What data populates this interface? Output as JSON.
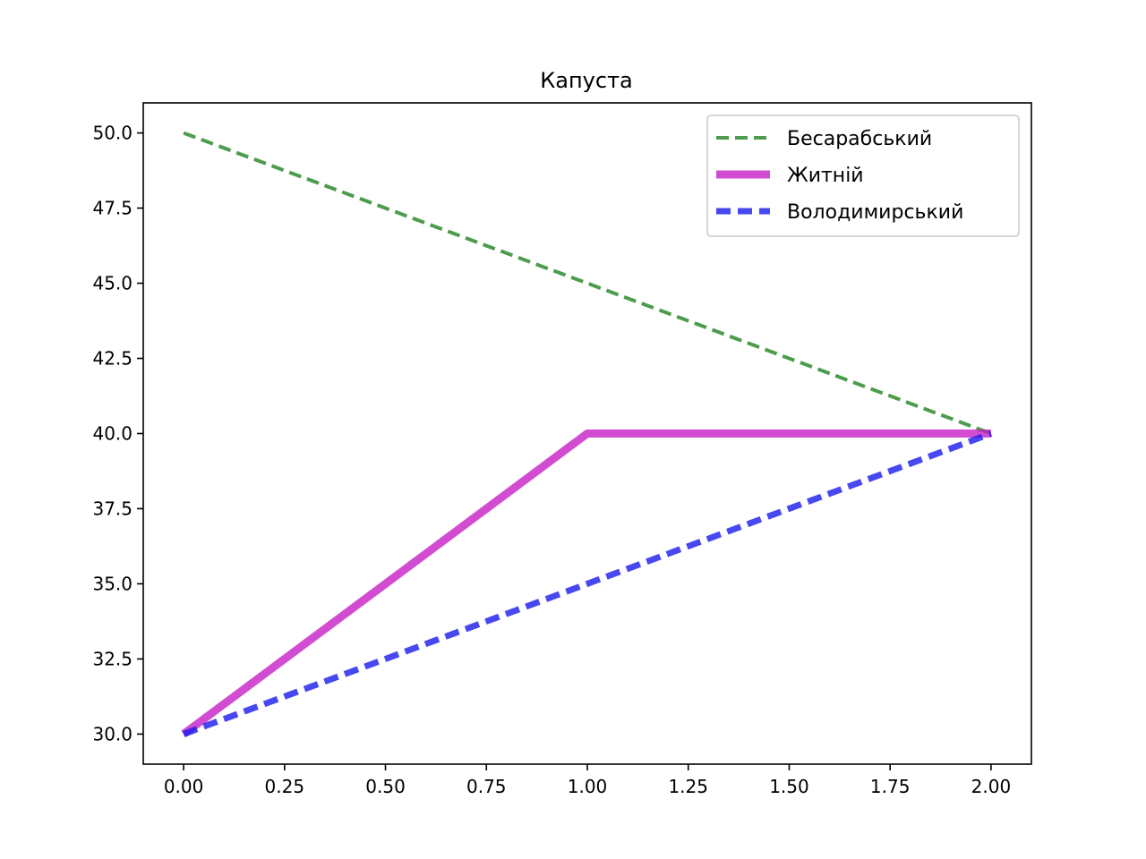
{
  "chart_data": {
    "type": "line",
    "title": "Капуста",
    "xlabel": "",
    "ylabel": "",
    "xlim": [
      -0.1,
      2.1
    ],
    "ylim": [
      29.0,
      51.0
    ],
    "x_ticks": [
      "0.00",
      "0.25",
      "0.50",
      "0.75",
      "1.00",
      "1.25",
      "1.50",
      "1.75",
      "2.00"
    ],
    "y_ticks": [
      "30.0",
      "32.5",
      "35.0",
      "37.5",
      "40.0",
      "42.5",
      "45.0",
      "47.5",
      "50.0"
    ],
    "grid": false,
    "legend_position": "upper right",
    "series": [
      {
        "name": "Бесарабський",
        "x": [
          0,
          1,
          2
        ],
        "y": [
          50,
          45,
          40
        ],
        "color": "#2e8b2e",
        "style": "dashed"
      },
      {
        "name": "Житній",
        "x": [
          0,
          1,
          2
        ],
        "y": [
          30,
          40,
          40
        ],
        "color": "#c71fc7",
        "style": "solid"
      },
      {
        "name": "Володимирський",
        "x": [
          0,
          1,
          2
        ],
        "y": [
          30,
          35,
          40
        ],
        "color": "#1a1aee",
        "style": "dashed"
      }
    ]
  }
}
